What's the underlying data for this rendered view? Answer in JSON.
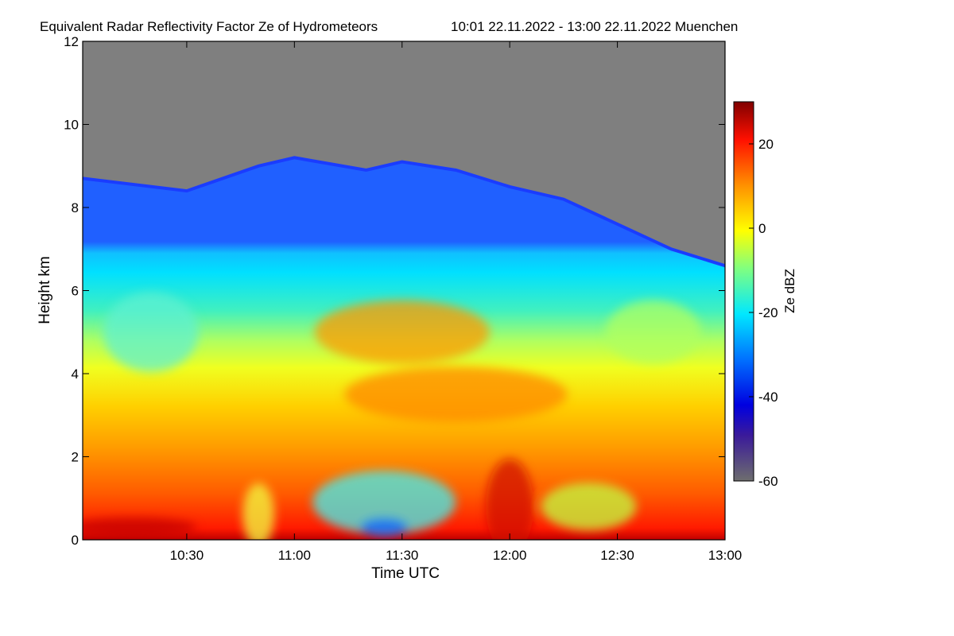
{
  "chart_data": {
    "type": "heatmap",
    "title": "Equivalent Radar Reflectivity Factor Ze of Hydrometeors",
    "subtitle": "10:01 22.11.2022 - 13:00 22.11.2022 Muenchen",
    "xlabel": "Time UTC",
    "ylabel": "Height km",
    "xlim": [
      "10:01",
      "13:00"
    ],
    "ylim": [
      0,
      12
    ],
    "x_ticks": [
      "10:30",
      "11:00",
      "11:30",
      "12:00",
      "12:30",
      "13:00"
    ],
    "y_ticks": [
      0,
      2,
      4,
      6,
      8,
      10,
      12
    ],
    "colorbar": {
      "label": "Ze dBZ",
      "range": [
        -60,
        30
      ],
      "ticks": [
        20,
        0,
        -20,
        -40,
        -60
      ],
      "colors": [
        "#6e6e6e",
        "#0000cc",
        "#0044ff",
        "#00e6ff",
        "#ffff00",
        "#ff8c00",
        "#ff0000",
        "#8b0000"
      ]
    },
    "no_signal_color": "#7f7f7f",
    "cloud_top_km": [
      {
        "t": "10:01",
        "h": 8.7
      },
      {
        "t": "10:30",
        "h": 8.4
      },
      {
        "t": "10:50",
        "h": 9.0
      },
      {
        "t": "11:00",
        "h": 9.2
      },
      {
        "t": "11:20",
        "h": 8.9
      },
      {
        "t": "11:30",
        "h": 9.1
      },
      {
        "t": "11:45",
        "h": 8.9
      },
      {
        "t": "12:00",
        "h": 8.5
      },
      {
        "t": "12:15",
        "h": 8.2
      },
      {
        "t": "12:30",
        "h": 7.6
      },
      {
        "t": "12:45",
        "h": 7.0
      },
      {
        "t": "13:00",
        "h": 6.6
      }
    ],
    "reflectivity_profile": [
      {
        "h": 0.3,
        "ze": 20
      },
      {
        "h": 1.0,
        "ze": 12
      },
      {
        "h": 2.0,
        "ze": 8
      },
      {
        "h": 3.0,
        "ze": 4
      },
      {
        "h": 4.0,
        "ze": 0
      },
      {
        "h": 5.0,
        "ze": -8
      },
      {
        "h": 6.0,
        "ze": -14
      },
      {
        "h": 7.0,
        "ze": -20
      },
      {
        "h": 8.0,
        "ze": -26
      },
      {
        "h": 8.8,
        "ze": -40
      }
    ]
  }
}
